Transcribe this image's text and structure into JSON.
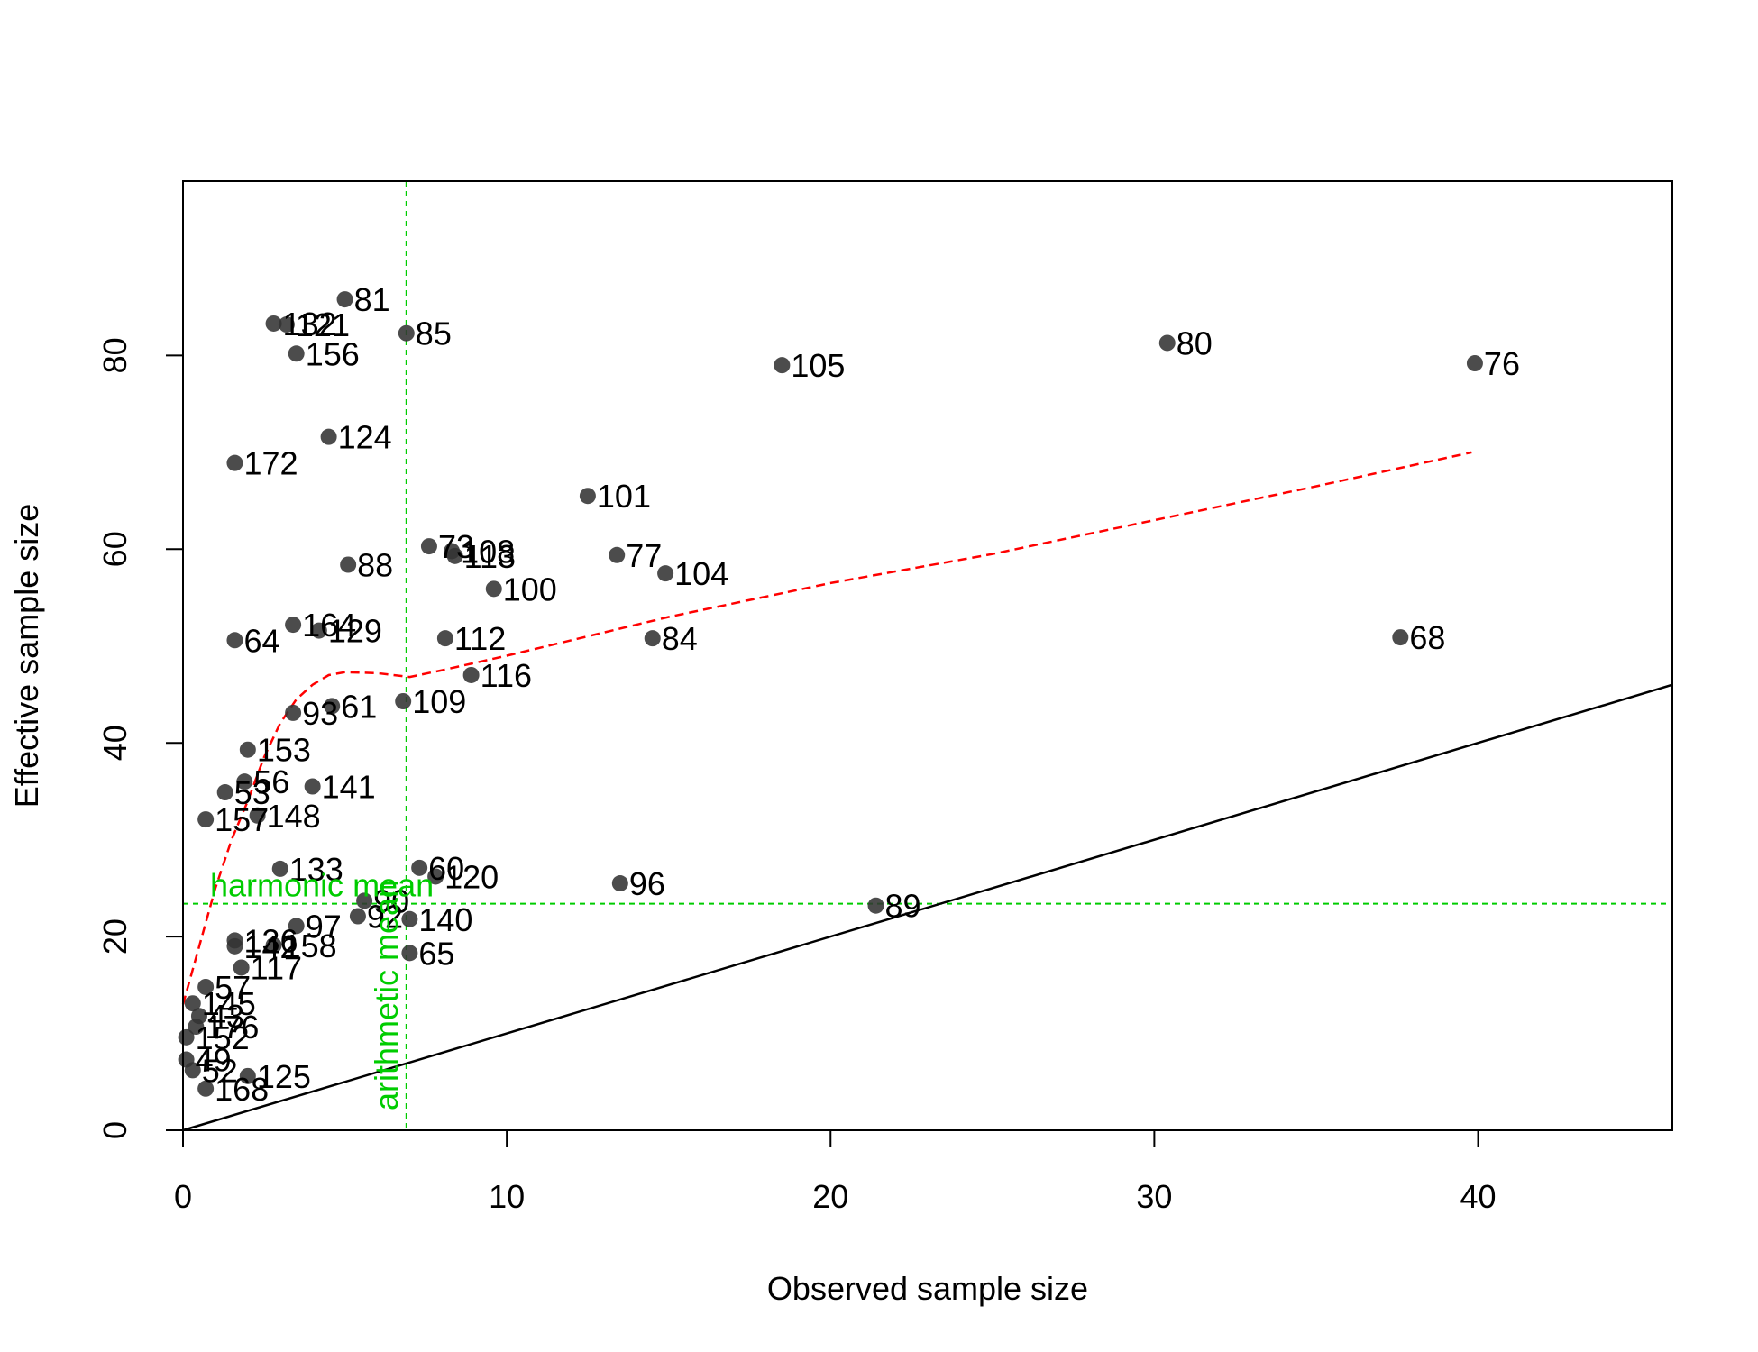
{
  "chart_data": {
    "type": "scatter",
    "title": "",
    "xlabel": "Observed sample size",
    "ylabel": "Effective sample size",
    "xlim": [
      0,
      46
    ],
    "ylim": [
      0,
      98
    ],
    "xticks": [
      0,
      10,
      20,
      30,
      40
    ],
    "yticks": [
      0,
      20,
      40,
      60,
      80
    ],
    "grid": false,
    "legend": "none",
    "colors": {
      "points": "#333333",
      "labels": "#000000",
      "smooth": "#ff0000",
      "identity": "#000000",
      "means": "#00cc00"
    },
    "points": [
      {
        "label": "81",
        "x": 5.0,
        "y": 85.8
      },
      {
        "label": "132",
        "x": 2.8,
        "y": 83.3
      },
      {
        "label": "121",
        "x": 3.2,
        "y": 83.2
      },
      {
        "label": "85",
        "x": 6.9,
        "y": 82.3
      },
      {
        "label": "156",
        "x": 3.5,
        "y": 80.2
      },
      {
        "label": "105",
        "x": 18.5,
        "y": 79.0
      },
      {
        "label": "80",
        "x": 30.4,
        "y": 81.3
      },
      {
        "label": "76",
        "x": 39.9,
        "y": 79.2
      },
      {
        "label": "124",
        "x": 4.5,
        "y": 71.6
      },
      {
        "label": "172",
        "x": 1.6,
        "y": 68.9
      },
      {
        "label": "101",
        "x": 12.5,
        "y": 65.5
      },
      {
        "label": "73",
        "x": 7.6,
        "y": 60.3
      },
      {
        "label": "108",
        "x": 8.3,
        "y": 59.8
      },
      {
        "label": "113",
        "x": 8.4,
        "y": 59.3
      },
      {
        "label": "77",
        "x": 13.4,
        "y": 59.4
      },
      {
        "label": "88",
        "x": 5.1,
        "y": 58.4
      },
      {
        "label": "104",
        "x": 14.9,
        "y": 57.5
      },
      {
        "label": "100",
        "x": 9.6,
        "y": 55.9
      },
      {
        "label": "164",
        "x": 3.4,
        "y": 52.2
      },
      {
        "label": "129",
        "x": 4.2,
        "y": 51.6
      },
      {
        "label": "64",
        "x": 1.6,
        "y": 50.6
      },
      {
        "label": "112",
        "x": 8.1,
        "y": 50.8
      },
      {
        "label": "84",
        "x": 14.5,
        "y": 50.8
      },
      {
        "label": "68",
        "x": 37.6,
        "y": 50.9
      },
      {
        "label": "116",
        "x": 8.9,
        "y": 47.0
      },
      {
        "label": "109",
        "x": 6.8,
        "y": 44.3
      },
      {
        "label": "61",
        "x": 4.6,
        "y": 43.8
      },
      {
        "label": "93",
        "x": 3.4,
        "y": 43.1
      },
      {
        "label": "153",
        "x": 2.0,
        "y": 39.3
      },
      {
        "label": "56",
        "x": 1.9,
        "y": 36.0
      },
      {
        "label": "141",
        "x": 4.0,
        "y": 35.5
      },
      {
        "label": "53",
        "x": 1.3,
        "y": 34.9
      },
      {
        "label": "148",
        "x": 2.3,
        "y": 32.5
      },
      {
        "label": "157",
        "x": 0.7,
        "y": 32.1
      },
      {
        "label": "133",
        "x": 3.0,
        "y": 27.0
      },
      {
        "label": "60",
        "x": 7.3,
        "y": 27.1
      },
      {
        "label": "120",
        "x": 7.8,
        "y": 26.2
      },
      {
        "label": "96",
        "x": 13.5,
        "y": 25.5
      },
      {
        "label": "90",
        "x": 5.6,
        "y": 23.7
      },
      {
        "label": "89",
        "x": 21.4,
        "y": 23.2
      },
      {
        "label": "92",
        "x": 5.4,
        "y": 22.1
      },
      {
        "label": "140",
        "x": 7.0,
        "y": 21.8
      },
      {
        "label": "97",
        "x": 3.5,
        "y": 21.1
      },
      {
        "label": "136",
        "x": 1.6,
        "y": 19.6
      },
      {
        "label": "142",
        "x": 1.6,
        "y": 19.0
      },
      {
        "label": "158",
        "x": 2.8,
        "y": 19.1
      },
      {
        "label": "65",
        "x": 7.0,
        "y": 18.3
      },
      {
        "label": "117",
        "x": 1.8,
        "y": 16.8
      },
      {
        "label": "57",
        "x": 0.7,
        "y": 14.8
      },
      {
        "label": "145",
        "x": 0.3,
        "y": 13.1
      },
      {
        "label": "43",
        "x": 0.5,
        "y": 11.8
      },
      {
        "label": "176",
        "x": 0.4,
        "y": 10.7
      },
      {
        "label": "152",
        "x": 0.1,
        "y": 9.6
      },
      {
        "label": "49",
        "x": 0.1,
        "y": 7.3
      },
      {
        "label": "52",
        "x": 0.3,
        "y": 6.2
      },
      {
        "label": "125",
        "x": 2.0,
        "y": 5.6
      },
      {
        "label": "168",
        "x": 0.7,
        "y": 4.3
      }
    ],
    "smooth_line": {
      "x": [
        0,
        0.5,
        1,
        1.5,
        2,
        2.5,
        3,
        3.5,
        4,
        4.5,
        5,
        6,
        7,
        8,
        10,
        15,
        20,
        25,
        30,
        35,
        39.8
      ],
      "y": [
        13,
        19,
        25,
        30,
        34,
        38.5,
        42,
        44.5,
        46,
        47,
        47.3,
        47.2,
        46.8,
        47.5,
        49,
        53,
        56.5,
        59.5,
        63,
        66.5,
        70
      ]
    },
    "identity_line": {
      "x": [
        0,
        46
      ],
      "y": [
        0,
        46
      ]
    },
    "annotations": {
      "harmonic_mean": {
        "label": "harmonic mean",
        "value": 23.4
      },
      "arithmetic_mean": {
        "label": "arithmetic mean",
        "value": 6.9
      }
    }
  }
}
